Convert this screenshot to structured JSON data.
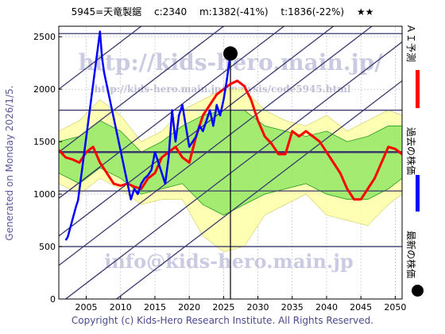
{
  "header": {
    "title": "5945=天竜製鋸　 c:2340 　m:1382(-41%) 　t:1836(-22%) 　★★"
  },
  "side_note": "Generated on Monday 2026/1/5.",
  "watermarks": {
    "top": "http://kids-hero.main.jp/",
    "mid": "http://kids-hero.main.jp/analysis/code5945.html",
    "bottom": "info@kids-hero.main.jp"
  },
  "legend": {
    "ai": "ＡＩ予測",
    "past": "過去の株価",
    "latest": "最新の株価"
  },
  "footer": {
    "copyright": "Copyright (c) Kids-Hero Research Institute. All Rights Reserved."
  },
  "colors": {
    "ai_line": "#ff0000",
    "past_line": "#0000ff",
    "band_green": "#66dd44",
    "band_yellow": "#ffff99",
    "hline": "#3a3a6e",
    "marker": "#000000"
  },
  "chart_data": {
    "type": "line",
    "xlim": [
      2001,
      2051
    ],
    "ylim": [
      0,
      2600
    ],
    "xticks": [
      2005,
      2010,
      2015,
      2020,
      2025,
      2030,
      2035,
      2040,
      2045,
      2050
    ],
    "yticks": [
      0,
      500,
      1000,
      1500,
      2000,
      2500
    ],
    "grid": true,
    "latest": {
      "x": 2026.0,
      "y": 2340
    },
    "horizontal_lines": [
      500,
      1030,
      1400,
      1800,
      2530
    ],
    "trend_lines": [
      {
        "x": [
          2001,
          2051
        ],
        "y": [
          -420,
          2080
        ]
      },
      {
        "x": [
          2001,
          2051
        ],
        "y": [
          -50,
          2450
        ]
      },
      {
        "x": [
          2001,
          2051
        ],
        "y": [
          320,
          2820
        ]
      },
      {
        "x": [
          2001,
          2051
        ],
        "y": [
          600,
          3100
        ]
      },
      {
        "x": [
          2001,
          2051
        ],
        "y": [
          960,
          3460
        ]
      },
      {
        "x": [
          2001,
          2051
        ],
        "y": [
          1400,
          3900
        ]
      },
      {
        "x": [
          2001,
          2051
        ],
        "y": [
          2000,
          4500
        ]
      }
    ],
    "band_outer": {
      "x": [
        2001,
        2004,
        2007,
        2010,
        2013,
        2016,
        2019,
        2022,
        2025,
        2028,
        2031,
        2034,
        2037,
        2040,
        2043,
        2046,
        2049,
        2051
      ],
      "upper": [
        1600,
        1700,
        1900,
        1750,
        1500,
        1600,
        1800,
        1900,
        2000,
        2000,
        1800,
        1700,
        1650,
        1750,
        1600,
        1700,
        1800,
        1750
      ],
      "lower": [
        1100,
        1000,
        1150,
        1050,
        900,
        950,
        950,
        600,
        450,
        500,
        800,
        900,
        1000,
        800,
        750,
        700,
        900,
        1000
      ]
    },
    "band_inner": {
      "x": [
        2001,
        2004,
        2007,
        2010,
        2013,
        2016,
        2019,
        2022,
        2025,
        2028,
        2031,
        2034,
        2037,
        2040,
        2043,
        2046,
        2049,
        2051
      ],
      "upper": [
        1500,
        1550,
        1700,
        1600,
        1400,
        1500,
        1650,
        1750,
        1800,
        1800,
        1650,
        1600,
        1550,
        1600,
        1500,
        1550,
        1650,
        1650
      ],
      "lower": [
        1200,
        1100,
        1250,
        1150,
        1000,
        1050,
        1100,
        900,
        800,
        900,
        1000,
        1050,
        1100,
        1000,
        950,
        950,
        1050,
        1150
      ]
    },
    "series": [
      {
        "name": "ＡＩ予測",
        "x": [
          2001,
          2002,
          2003,
          2004,
          2005,
          2006,
          2007,
          2008,
          2009,
          2010,
          2011,
          2012,
          2013,
          2014,
          2015,
          2016,
          2017,
          2018,
          2019,
          2020,
          2021,
          2022,
          2023,
          2024,
          2025,
          2026,
          2027,
          2028,
          2029,
          2030,
          2031,
          2032,
          2033,
          2034,
          2035,
          2036,
          2037,
          2038,
          2039,
          2040,
          2041,
          2042,
          2043,
          2044,
          2045,
          2046,
          2047,
          2048,
          2049,
          2050,
          2051
        ],
        "y": [
          1420,
          1350,
          1330,
          1300,
          1400,
          1450,
          1300,
          1200,
          1100,
          1080,
          1100,
          1070,
          1050,
          1150,
          1200,
          1350,
          1400,
          1450,
          1350,
          1300,
          1550,
          1750,
          1850,
          1950,
          2000,
          2050,
          2080,
          2030,
          1900,
          1700,
          1550,
          1480,
          1380,
          1380,
          1600,
          1550,
          1600,
          1550,
          1500,
          1400,
          1300,
          1200,
          1050,
          950,
          950,
          1050,
          1150,
          1300,
          1450,
          1430,
          1380
        ]
      },
      {
        "name": "過去の株価",
        "x": [
          2002.0,
          2002.3,
          2003.5,
          2003.8,
          2007.0,
          2007.3,
          2007.6,
          2011.5,
          2012.0,
          2012.5,
          2013.0,
          2013.5,
          2014.0,
          2014.5,
          2015.0,
          2015.5,
          2016.0,
          2016.5,
          2017.0,
          2017.5,
          2018.0,
          2018.5,
          2019.0,
          2019.5,
          2020.0,
          2020.5,
          2021.0,
          2021.5,
          2022.0,
          2022.5,
          2023.0,
          2023.5,
          2024.0,
          2024.5,
          2025.0,
          2025.5,
          2026.0
        ],
        "y": [
          560,
          590,
          880,
          940,
          2550,
          2300,
          2160,
          950,
          1050,
          1000,
          1100,
          1150,
          1180,
          1230,
          1400,
          1300,
          1200,
          1100,
          1350,
          1800,
          1500,
          1750,
          1850,
          1650,
          1450,
          1500,
          1550,
          1650,
          1600,
          1700,
          1800,
          1650,
          1850,
          1750,
          1900,
          2100,
          2340
        ]
      }
    ]
  }
}
